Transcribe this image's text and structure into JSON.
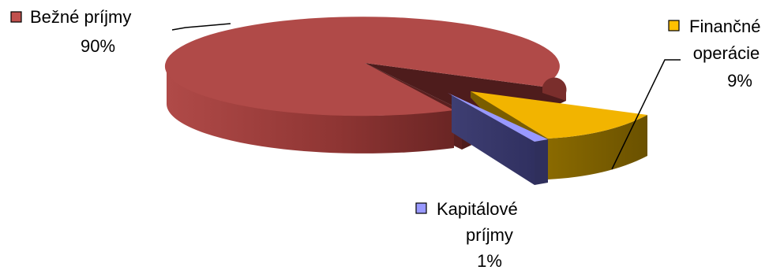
{
  "chart_data": {
    "type": "pie",
    "title": "",
    "slices": [
      {
        "label": "Bežné príjmy",
        "value": 90,
        "value_label": "90%",
        "color": "#b04a48",
        "exploded": false
      },
      {
        "label": "Finančné operácie",
        "value": 9,
        "value_label": "9%",
        "color": "#f2b400",
        "exploded": true
      },
      {
        "label": "Kapitálové príjmy",
        "value": 1,
        "value_label": "1%",
        "color": "#9999ff",
        "exploded": true
      }
    ],
    "labels": [
      {
        "lines": [
          "Bežné príjmy",
          "90%"
        ],
        "color": "#c0504d"
      },
      {
        "lines": [
          "Finančné",
          "operácie",
          "9%"
        ],
        "color": "#ffc000"
      },
      {
        "lines": [
          "Kapitálové",
          "príjmy",
          "1%"
        ],
        "color": "#9999ff"
      }
    ],
    "style": "3d-exploded",
    "legend": "none"
  }
}
